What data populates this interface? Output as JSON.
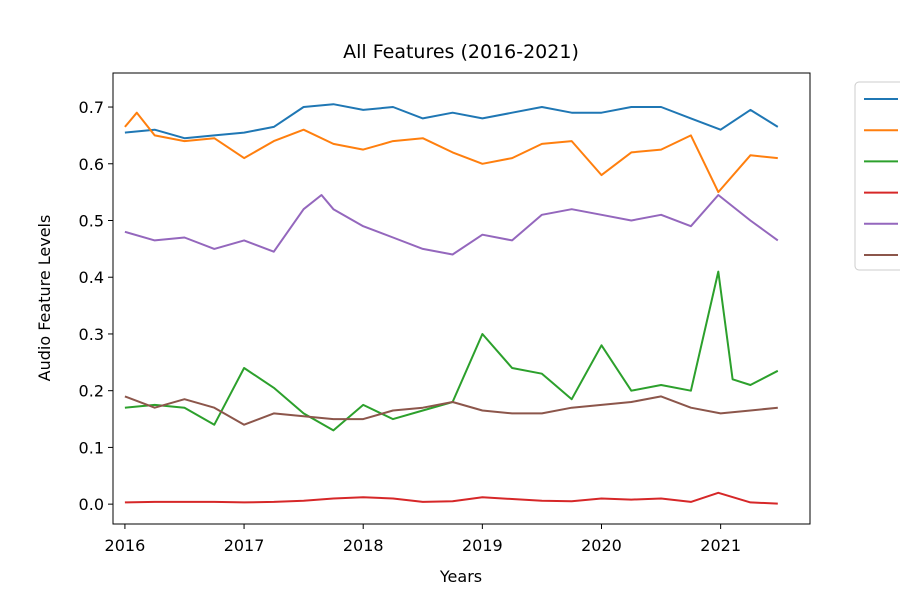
{
  "chart_data": {
    "type": "line",
    "title": "All Features (2016-2021)",
    "xlabel": "Years",
    "ylabel": "Audio Feature Levels",
    "xlim": [
      2015.9,
      2021.75
    ],
    "ylim": [
      -0.035,
      0.76
    ],
    "x_ticks": [
      "2016",
      "2017",
      "2018",
      "2019",
      "2020",
      "2021"
    ],
    "y_ticks": [
      "0.0",
      "0.1",
      "0.2",
      "0.3",
      "0.4",
      "0.5",
      "0.6",
      "0.7"
    ],
    "grid": false,
    "legend_position": "outside-right",
    "series": [
      {
        "color": "#1f77b4",
        "x": [
          2016.0,
          2016.25,
          2016.5,
          2016.75,
          2017.0,
          2017.25,
          2017.5,
          2017.75,
          2018.0,
          2018.25,
          2018.5,
          2018.75,
          2019.0,
          2019.25,
          2019.5,
          2019.75,
          2020.0,
          2020.25,
          2020.5,
          2020.75,
          2021.0,
          2021.25,
          2021.48
        ],
        "values": [
          0.655,
          0.66,
          0.645,
          0.65,
          0.655,
          0.665,
          0.7,
          0.705,
          0.695,
          0.7,
          0.68,
          0.69,
          0.68,
          0.69,
          0.7,
          0.69,
          0.69,
          0.7,
          0.7,
          0.68,
          0.66,
          0.695,
          0.665
        ]
      },
      {
        "color": "#ff7f0e",
        "x": [
          2016.0,
          2016.1,
          2016.25,
          2016.5,
          2016.75,
          2017.0,
          2017.25,
          2017.5,
          2017.75,
          2018.0,
          2018.25,
          2018.5,
          2018.75,
          2019.0,
          2019.25,
          2019.5,
          2019.75,
          2020.0,
          2020.25,
          2020.5,
          2020.75,
          2020.98,
          2021.25,
          2021.48
        ],
        "values": [
          0.665,
          0.69,
          0.65,
          0.64,
          0.645,
          0.61,
          0.64,
          0.66,
          0.635,
          0.625,
          0.64,
          0.645,
          0.62,
          0.6,
          0.61,
          0.635,
          0.64,
          0.58,
          0.62,
          0.625,
          0.65,
          0.55,
          0.615,
          0.61
        ]
      },
      {
        "color": "#2ca02c",
        "x": [
          2016.0,
          2016.25,
          2016.5,
          2016.75,
          2017.0,
          2017.25,
          2017.5,
          2017.75,
          2018.0,
          2018.25,
          2018.5,
          2018.75,
          2019.0,
          2019.25,
          2019.5,
          2019.75,
          2020.0,
          2020.25,
          2020.5,
          2020.75,
          2020.98,
          2021.1,
          2021.25,
          2021.48
        ],
        "values": [
          0.17,
          0.175,
          0.17,
          0.14,
          0.24,
          0.205,
          0.16,
          0.13,
          0.175,
          0.15,
          0.165,
          0.18,
          0.3,
          0.24,
          0.23,
          0.185,
          0.28,
          0.2,
          0.21,
          0.2,
          0.41,
          0.22,
          0.21,
          0.235
        ]
      },
      {
        "color": "#d62728",
        "x": [
          2016.0,
          2016.25,
          2016.5,
          2016.75,
          2017.0,
          2017.25,
          2017.5,
          2017.75,
          2018.0,
          2018.25,
          2018.5,
          2018.75,
          2019.0,
          2019.25,
          2019.5,
          2019.75,
          2020.0,
          2020.25,
          2020.5,
          2020.75,
          2020.98,
          2021.25,
          2021.48
        ],
        "values": [
          0.003,
          0.004,
          0.004,
          0.004,
          0.003,
          0.004,
          0.006,
          0.01,
          0.012,
          0.01,
          0.004,
          0.005,
          0.012,
          0.009,
          0.006,
          0.005,
          0.01,
          0.008,
          0.01,
          0.004,
          0.02,
          0.003,
          0.001
        ]
      },
      {
        "color": "#9467bd",
        "x": [
          2016.0,
          2016.25,
          2016.5,
          2016.75,
          2017.0,
          2017.25,
          2017.5,
          2017.65,
          2017.75,
          2018.0,
          2018.25,
          2018.5,
          2018.75,
          2019.0,
          2019.25,
          2019.5,
          2019.75,
          2020.0,
          2020.25,
          2020.5,
          2020.75,
          2020.98,
          2021.25,
          2021.48
        ],
        "values": [
          0.48,
          0.465,
          0.47,
          0.45,
          0.465,
          0.445,
          0.52,
          0.545,
          0.52,
          0.49,
          0.47,
          0.45,
          0.44,
          0.475,
          0.465,
          0.51,
          0.52,
          0.51,
          0.5,
          0.51,
          0.49,
          0.545,
          0.5,
          0.465
        ]
      },
      {
        "color": "#8c564b",
        "x": [
          2016.0,
          2016.25,
          2016.5,
          2016.75,
          2017.0,
          2017.25,
          2017.5,
          2017.75,
          2018.0,
          2018.25,
          2018.5,
          2018.75,
          2019.0,
          2019.25,
          2019.5,
          2019.75,
          2020.0,
          2020.25,
          2020.5,
          2020.75,
          2021.0,
          2021.25,
          2021.48
        ],
        "values": [
          0.19,
          0.17,
          0.185,
          0.17,
          0.14,
          0.16,
          0.155,
          0.15,
          0.15,
          0.165,
          0.17,
          0.18,
          0.165,
          0.16,
          0.16,
          0.17,
          0.175,
          0.18,
          0.19,
          0.17,
          0.16,
          0.165,
          0.17
        ]
      }
    ]
  }
}
